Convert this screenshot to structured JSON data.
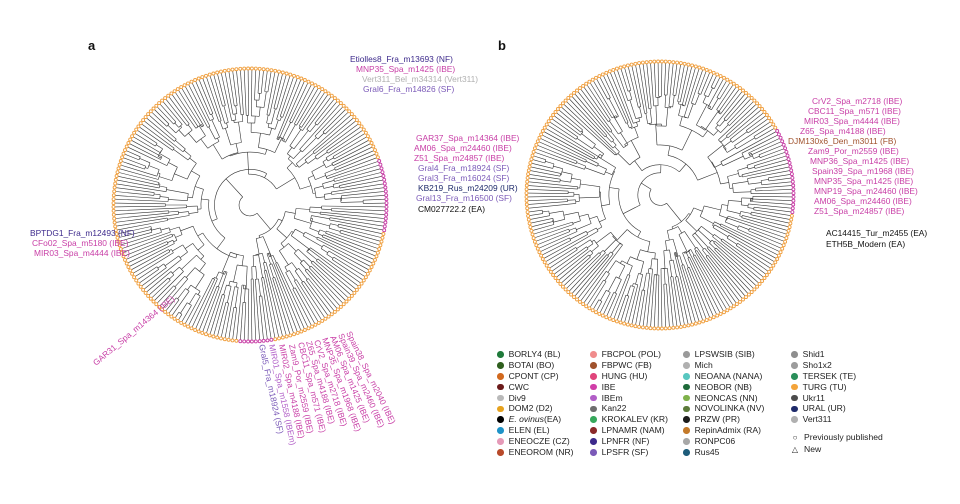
{
  "panels": [
    {
      "id": "a",
      "label": "a",
      "leaves": [
        {
          "text": "Etiolles8_Fra_m13693 (NF)",
          "group": "NF"
        },
        {
          "text": "MNP35_Spa_m1425 (IBE)",
          "group": "IBE"
        },
        {
          "text": "Vert311_Bel_m34314 (Vert311)",
          "group": "Vert311"
        },
        {
          "text": "Gral6_Fra_m14826 (SF)",
          "group": "SF"
        },
        {
          "text": "GAR37_Spa_m14364 (IBE)",
          "group": "IBE"
        },
        {
          "text": "AM06_Spa_m24460 (IBE)",
          "group": "IBE"
        },
        {
          "text": "Z51_Spa_m24857 (IBE)",
          "group": "IBE"
        },
        {
          "text": "Gral4_Fra_m18924 (SF)",
          "group": "SF"
        },
        {
          "text": "Gral3_Fra_m16024 (SF)",
          "group": "SF"
        },
        {
          "text": "KB219_Rus_m24209 (UR)",
          "group": "UR"
        },
        {
          "text": "Gral13_Fra_m16500 (SF)",
          "group": "SF"
        },
        {
          "text": "CM027722.2 (EA)",
          "group": "EA"
        },
        {
          "text": "BPTDG1_Fra_m12493 (NF)",
          "group": "NF"
        },
        {
          "text": "CFo02_Spa_m5180 (IBE)",
          "group": "IBE"
        },
        {
          "text": "MIR03_Spa_m4444 (IBE)",
          "group": "IBE"
        },
        {
          "text": "GAR31_Spa_m14364 (IBE)",
          "group": "IBE"
        },
        {
          "text": "Gral5_Fra_m18924 (SF)",
          "group": "SF"
        },
        {
          "text": "MIR01_Spa_m1558 (IBEm)",
          "group": "IBEm"
        },
        {
          "text": "MIR02_Spa_m4188 (IBE)",
          "group": "IBE"
        },
        {
          "text": "Zam9_Por_m2559 (IBE)",
          "group": "IBE"
        },
        {
          "text": "CBC11_Spa_m571 (IBE)",
          "group": "IBE"
        },
        {
          "text": "Z65_Spa_m4188 (IBE)",
          "group": "IBE"
        },
        {
          "text": "CrV2_Spa_m2718 (IBE)",
          "group": "IBE"
        },
        {
          "text": "MNP35_Spa_m1968 (IBE)",
          "group": "IBE"
        },
        {
          "text": "AM06_Spa_m1425 (IBE)",
          "group": "IBE"
        },
        {
          "text": "Spain39_Spa_m2460 (IBE)",
          "group": "IBE"
        },
        {
          "text": "Spain38_Spa_m2040 (IBE)",
          "group": "IBE"
        }
      ]
    },
    {
      "id": "b",
      "label": "b",
      "leaves": [
        {
          "text": "CrV2_Spa_m2718 (IBE)",
          "group": "IBE"
        },
        {
          "text": "CBC11_Spa_m571 (IBE)",
          "group": "IBE"
        },
        {
          "text": "MIR03_Spa_m4444 (IBE)",
          "group": "IBE"
        },
        {
          "text": "Z65_Spa_m4188 (IBE)",
          "group": "IBE"
        },
        {
          "text": "DJM130x6_Den_m3011 (FB)",
          "group": "FB"
        },
        {
          "text": "Zam9_Por_m2559 (IBE)",
          "group": "IBE"
        },
        {
          "text": "MNP36_Spa_m1425 (IBE)",
          "group": "IBE"
        },
        {
          "text": "Spain39_Spa_m1968 (IBE)",
          "group": "IBE"
        },
        {
          "text": "MNP35_Spa_m1425 (IBE)",
          "group": "IBE"
        },
        {
          "text": "MNP19_Spa_m24460 (IBE)",
          "group": "IBE"
        },
        {
          "text": "AM06_Spa_m24460 (IBE)",
          "group": "IBE"
        },
        {
          "text": "Z51_Spa_m24857 (IBE)",
          "group": "IBE"
        },
        {
          "text": "AC14415_Tur_m2455 (EA)",
          "group": "EA"
        },
        {
          "text": "ETH5B_Modern (EA)",
          "group": "EA"
        }
      ]
    }
  ],
  "legend": {
    "columns": [
      [
        {
          "label": "BORLY4 (BL)",
          "color": "#1f7a3a"
        },
        {
          "label": "BOTAI (BO)",
          "color": "#2f5f1e"
        },
        {
          "label": "CPONT (CP)",
          "color": "#d2691e"
        },
        {
          "label": "CWC",
          "color": "#6b1a1a"
        },
        {
          "label": "Div9",
          "color": "#b9b9b9"
        },
        {
          "label": "DOM2 (D2)",
          "color": "#e6a21e"
        },
        {
          "label": "E. ovinus (EA)",
          "color": "#000000",
          "italic_part": "E. ovinus",
          "rest": " (EA)"
        },
        {
          "label": "ELEN (EL)",
          "color": "#1e93c8"
        },
        {
          "label": "ENEOCZE (CZ)",
          "color": "#e59ab8"
        },
        {
          "label": "ENEOROM (NR)",
          "color": "#b84a2a"
        }
      ],
      [
        {
          "label": "FBCPOL (POL)",
          "color": "#f08c8c"
        },
        {
          "label": "FBPWC (FB)",
          "color": "#a0522d"
        },
        {
          "label": "HUNG (HU)",
          "color": "#e0457b"
        },
        {
          "label": "IBE",
          "color": "#d03ea8"
        },
        {
          "label": "IBEm",
          "color": "#b15ec7"
        },
        {
          "label": "Kan22",
          "color": "#6e6e6e"
        },
        {
          "label": "KROKALEV (KR)",
          "color": "#37a85c"
        },
        {
          "label": "LPNAMR (NAM)",
          "color": "#8b2a2a"
        },
        {
          "label": "LPNFR (NF)",
          "color": "#3d2a8c"
        },
        {
          "label": "LPSFR (SF)",
          "color": "#7b5ab8"
        }
      ],
      [
        {
          "label": "LPSWSIB (SIB)",
          "color": "#9a9a9a"
        },
        {
          "label": "Mich",
          "color": "#b0b0b0"
        },
        {
          "label": "NEOANA (NANA)",
          "color": "#58c7c0"
        },
        {
          "label": "NEOBOR (NB)",
          "color": "#1e6a3a"
        },
        {
          "label": "NEONCAS (NN)",
          "color": "#7fb24a"
        },
        {
          "label": "NOVOLINKA (NV)",
          "color": "#5c7a3a"
        },
        {
          "label": "PRZW (PR)",
          "color": "#1c1c1c"
        },
        {
          "label": "RepinAdmix (RA)",
          "color": "#c47a2a"
        },
        {
          "label": "RONPC06",
          "color": "#a8a8a8"
        },
        {
          "label": "Rus45",
          "color": "#1d5c7a"
        }
      ],
      [
        {
          "label": "Shid1",
          "color": "#8e8e8e"
        },
        {
          "label": "Sho1x2",
          "color": "#9c9c9c"
        },
        {
          "label": "TERSEK (TE)",
          "color": "#2a8f5a"
        },
        {
          "label": "TURG (TU)",
          "color": "#f4a43a"
        },
        {
          "label": "Ukr11",
          "color": "#4c4c4c"
        },
        {
          "label": "URAL (UR)",
          "color": "#1e2a6a"
        },
        {
          "label": "Vert311",
          "color": "#b0b0b0"
        }
      ]
    ],
    "markers": [
      {
        "symbol": "○",
        "label": "Previously published"
      },
      {
        "symbol": "△",
        "label": "New"
      }
    ]
  }
}
